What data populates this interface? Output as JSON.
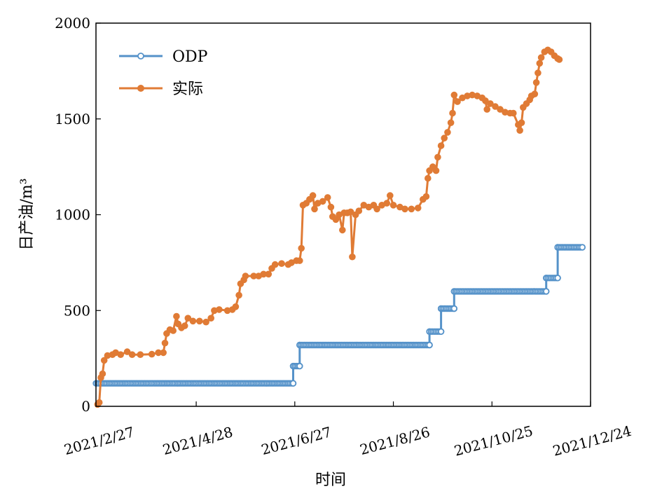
{
  "chart_data": {
    "type": "line",
    "title": "",
    "xlabel": "时间",
    "ylabel": "日产油/m³",
    "x_ticks": [
      "2021/2/27",
      "2021/4/28",
      "2021/6/27",
      "2021/8/26",
      "2021/10/25",
      "2021/12/24"
    ],
    "y_ticks": [
      0,
      500,
      1000,
      1500,
      2000
    ],
    "ylim": [
      0,
      2000
    ],
    "xlim": [
      "2021/2/26",
      "2021/12/24"
    ],
    "grid": false,
    "legend_position": "top-left",
    "series": [
      {
        "name": "ODP",
        "color": "#5592c9",
        "marker": "open-circle",
        "points": [
          [
            "2021/2/26",
            120
          ],
          [
            "2021/6/26",
            120
          ],
          [
            "2021/6/26",
            210
          ],
          [
            "2021/6/30",
            210
          ],
          [
            "2021/6/30",
            320
          ],
          [
            "2021/9/17",
            320
          ],
          [
            "2021/9/17",
            390
          ],
          [
            "2021/9/24",
            390
          ],
          [
            "2021/9/24",
            510
          ],
          [
            "2021/10/2",
            510
          ],
          [
            "2021/10/2",
            600
          ],
          [
            "2021/11/27",
            600
          ],
          [
            "2021/11/27",
            670
          ],
          [
            "2021/12/4",
            670
          ],
          [
            "2021/12/4",
            830
          ],
          [
            "2021/12/19",
            830
          ]
        ]
      },
      {
        "name": "实际",
        "color": "#e07b35",
        "marker": "filled-circle",
        "points": [
          [
            "2021/2/27",
            10
          ],
          [
            "2021/2/28",
            20
          ],
          [
            "2021/3/1",
            150
          ],
          [
            "2021/3/2",
            170
          ],
          [
            "2021/3/3",
            240
          ],
          [
            "2021/3/5",
            265
          ],
          [
            "2021/3/8",
            270
          ],
          [
            "2021/3/10",
            280
          ],
          [
            "2021/3/13",
            270
          ],
          [
            "2021/3/17",
            285
          ],
          [
            "2021/3/20",
            270
          ],
          [
            "2021/3/25",
            270
          ],
          [
            "2021/4/1",
            272
          ],
          [
            "2021/4/5",
            280
          ],
          [
            "2021/4/8",
            280
          ],
          [
            "2021/4/9",
            330
          ],
          [
            "2021/4/10",
            380
          ],
          [
            "2021/4/12",
            400
          ],
          [
            "2021/4/14",
            395
          ],
          [
            "2021/4/16",
            470
          ],
          [
            "2021/4/17",
            430
          ],
          [
            "2021/4/19",
            410
          ],
          [
            "2021/4/21",
            420
          ],
          [
            "2021/4/23",
            460
          ],
          [
            "2021/4/26",
            445
          ],
          [
            "2021/4/30",
            445
          ],
          [
            "2021/5/4",
            440
          ],
          [
            "2021/5/7",
            460
          ],
          [
            "2021/5/9",
            500
          ],
          [
            "2021/5/12",
            505
          ],
          [
            "2021/5/17",
            500
          ],
          [
            "2021/5/20",
            505
          ],
          [
            "2021/5/22",
            520
          ],
          [
            "2021/5/24",
            580
          ],
          [
            "2021/5/25",
            640
          ],
          [
            "2021/5/27",
            660
          ],
          [
            "2021/5/28",
            680
          ],
          [
            "2021/6/2",
            680
          ],
          [
            "2021/6/5",
            680
          ],
          [
            "2021/6/8",
            690
          ],
          [
            "2021/6/11",
            690
          ],
          [
            "2021/6/13",
            720
          ],
          [
            "2021/6/15",
            740
          ],
          [
            "2021/6/19",
            745
          ],
          [
            "2021/6/23",
            740
          ],
          [
            "2021/6/25",
            750
          ],
          [
            "2021/6/28",
            760
          ],
          [
            "2021/6/30",
            760
          ],
          [
            "2021/7/1",
            825
          ],
          [
            "2021/7/2",
            1050
          ],
          [
            "2021/7/4",
            1060
          ],
          [
            "2021/7/6",
            1080
          ],
          [
            "2021/7/8",
            1100
          ],
          [
            "2021/7/9",
            1030
          ],
          [
            "2021/7/11",
            1060
          ],
          [
            "2021/7/14",
            1070
          ],
          [
            "2021/7/17",
            1090
          ],
          [
            "2021/7/19",
            1040
          ],
          [
            "2021/7/20",
            990
          ],
          [
            "2021/7/22",
            975
          ],
          [
            "2021/7/24",
            1000
          ],
          [
            "2021/7/26",
            920
          ],
          [
            "2021/7/27",
            1010
          ],
          [
            "2021/7/29",
            1010
          ],
          [
            "2021/7/31",
            1015
          ],
          [
            "2021/8/1",
            780
          ],
          [
            "2021/8/3",
            1000
          ],
          [
            "2021/8/5",
            1020
          ],
          [
            "2021/8/8",
            1050
          ],
          [
            "2021/8/11",
            1040
          ],
          [
            "2021/8/14",
            1050
          ],
          [
            "2021/8/16",
            1030
          ],
          [
            "2021/8/19",
            1050
          ],
          [
            "2021/8/22",
            1060
          ],
          [
            "2021/8/24",
            1100
          ],
          [
            "2021/8/26",
            1050
          ],
          [
            "2021/8/30",
            1040
          ],
          [
            "2021/9/2",
            1030
          ],
          [
            "2021/9/6",
            1030
          ],
          [
            "2021/9/10",
            1035
          ],
          [
            "2021/9/13",
            1080
          ],
          [
            "2021/9/15",
            1095
          ],
          [
            "2021/9/16",
            1190
          ],
          [
            "2021/9/17",
            1230
          ],
          [
            "2021/9/19",
            1250
          ],
          [
            "2021/9/21",
            1230
          ],
          [
            "2021/9/22",
            1300
          ],
          [
            "2021/9/24",
            1360
          ],
          [
            "2021/9/26",
            1400
          ],
          [
            "2021/9/28",
            1430
          ],
          [
            "2021/9/30",
            1480
          ],
          [
            "2021/10/1",
            1530
          ],
          [
            "2021/10/2",
            1625
          ],
          [
            "2021/10/4",
            1590
          ],
          [
            "2021/10/7",
            1610
          ],
          [
            "2021/10/10",
            1620
          ],
          [
            "2021/10/13",
            1625
          ],
          [
            "2021/10/16",
            1620
          ],
          [
            "2021/10/19",
            1610
          ],
          [
            "2021/10/21",
            1595
          ],
          [
            "2021/10/22",
            1550
          ],
          [
            "2021/10/24",
            1580
          ],
          [
            "2021/10/27",
            1565
          ],
          [
            "2021/10/30",
            1550
          ],
          [
            "2021/11/2",
            1535
          ],
          [
            "2021/11/5",
            1530
          ],
          [
            "2021/11/7",
            1530
          ],
          [
            "2021/11/10",
            1470
          ],
          [
            "2021/11/11",
            1440
          ],
          [
            "2021/11/12",
            1480
          ],
          [
            "2021/11/13",
            1560
          ],
          [
            "2021/11/15",
            1580
          ],
          [
            "2021/11/17",
            1600
          ],
          [
            "2021/11/18",
            1620
          ],
          [
            "2021/11/20",
            1630
          ],
          [
            "2021/11/21",
            1690
          ],
          [
            "2021/11/22",
            1740
          ],
          [
            "2021/11/23",
            1790
          ],
          [
            "2021/11/24",
            1820
          ],
          [
            "2021/11/26",
            1850
          ],
          [
            "2021/11/28",
            1860
          ],
          [
            "2021/11/30",
            1850
          ],
          [
            "2021/12/2",
            1830
          ],
          [
            "2021/12/4",
            1815
          ],
          [
            "2021/12/5",
            1810
          ]
        ]
      }
    ]
  }
}
